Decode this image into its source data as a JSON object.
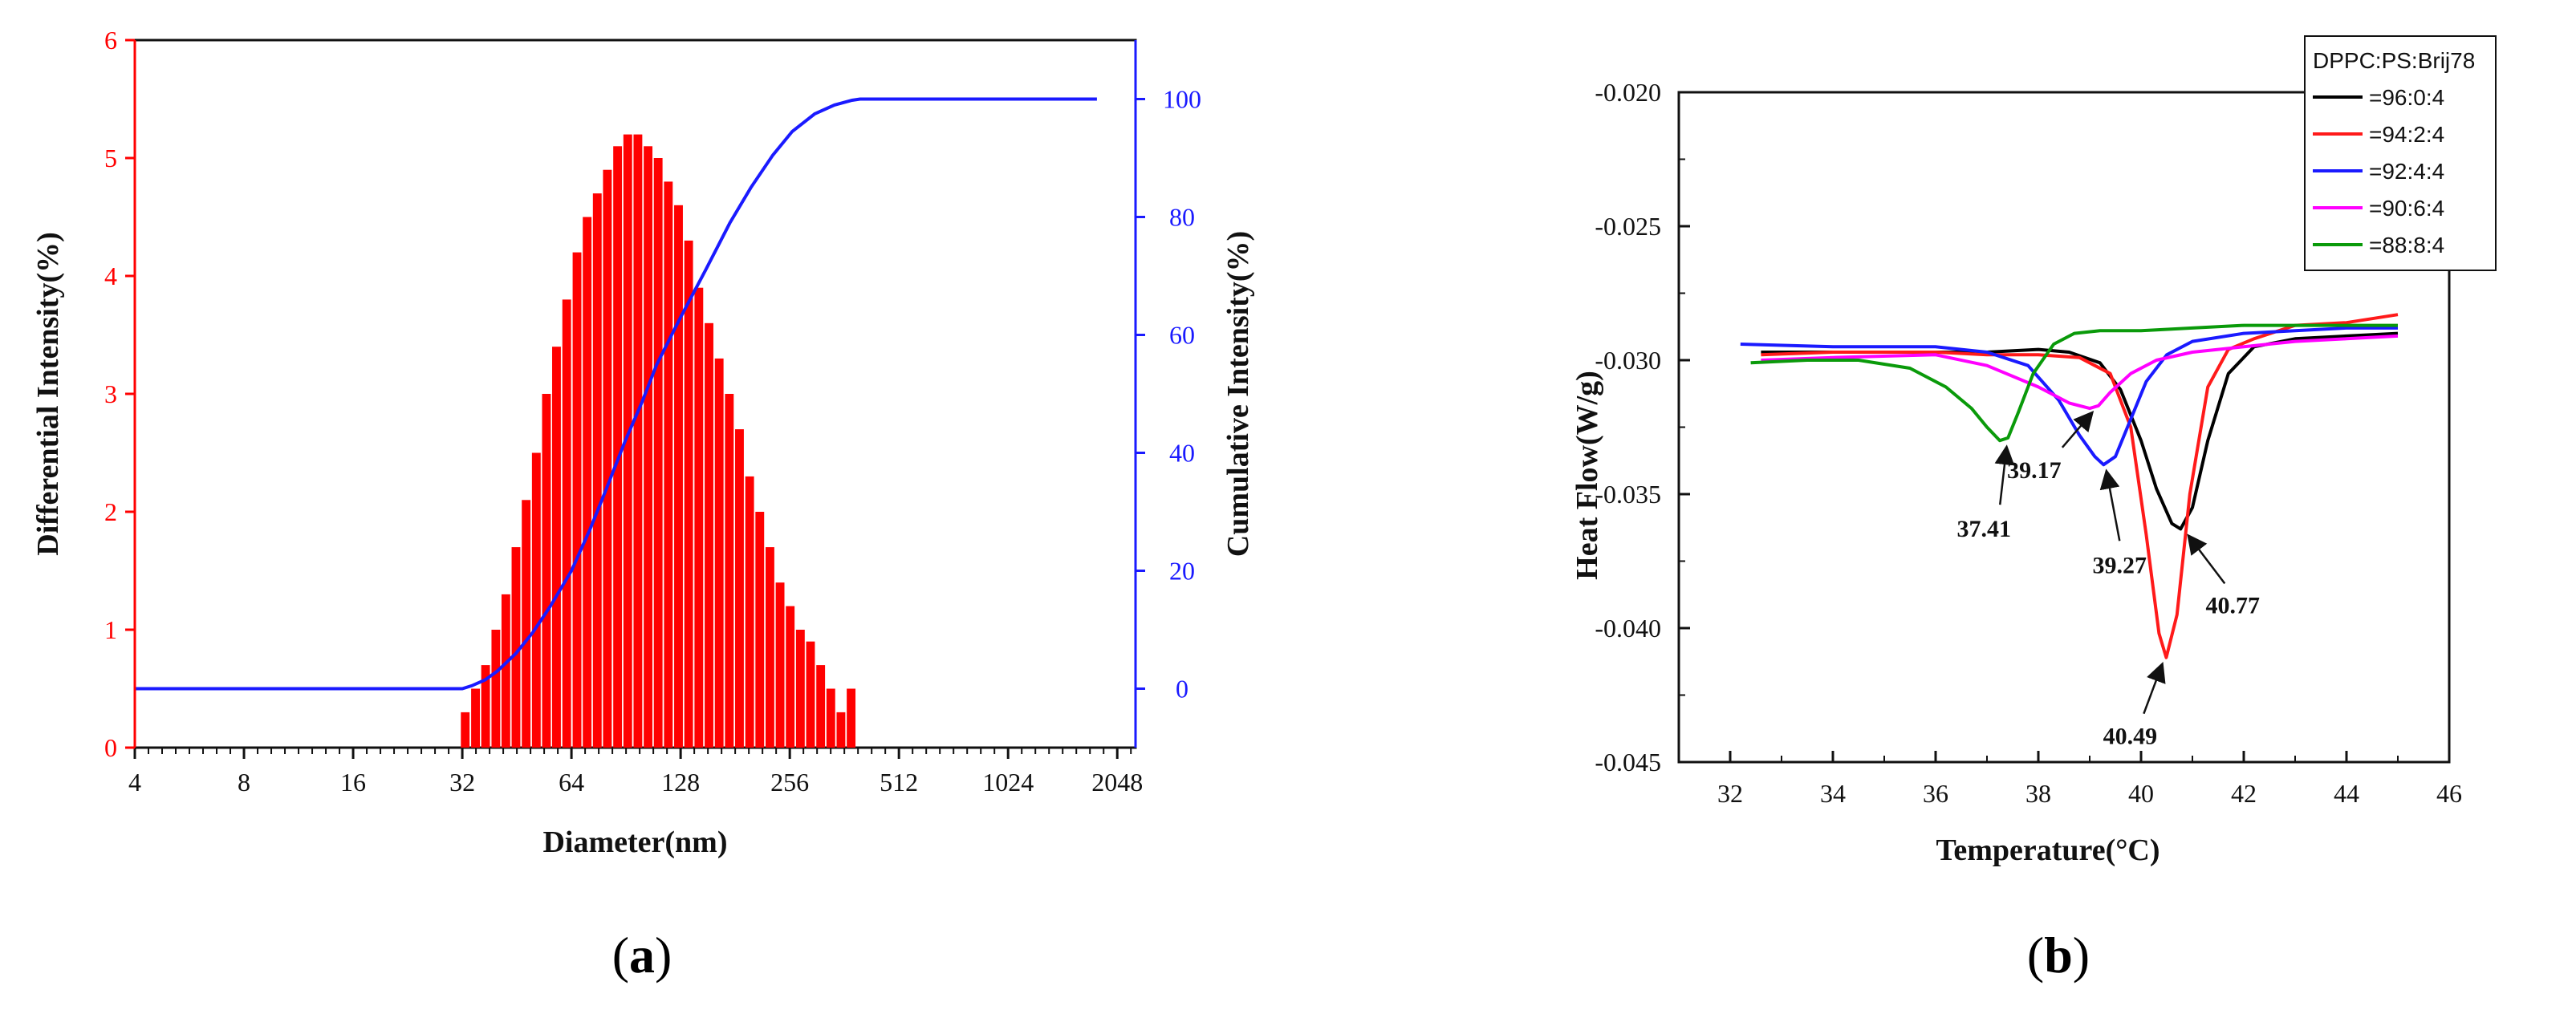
{
  "chart_data": [
    {
      "type": "bar",
      "panel_label": "(a)",
      "title": "",
      "xlabel": "Diameter(nm)",
      "ylabel": "Differential Intensity(%)",
      "y2label": "Cumulative Intensity(%)",
      "x_scale": "log2",
      "x_ticks": [
        4,
        8,
        16,
        32,
        64,
        128,
        256,
        512,
        1024,
        2048
      ],
      "xlim": [
        4,
        2300
      ],
      "ylim": [
        0,
        6
      ],
      "y_ticks": [
        0,
        1,
        2,
        3,
        4,
        5,
        6
      ],
      "y2lim": [
        -10,
        110
      ],
      "y2_ticks": [
        0,
        20,
        40,
        60,
        80,
        100
      ],
      "colors": {
        "bars": "#ff0000",
        "left_axis": "#ff0000",
        "right_axis": "#1a1aff",
        "curve": "#1a1aff"
      },
      "series": [
        {
          "name": "Differential Intensity",
          "type": "bar",
          "x": [
            32.6,
            34.8,
            37.1,
            39.6,
            42.2,
            45.0,
            48.0,
            51.2,
            54.6,
            58.2,
            62.1,
            66.3,
            70.7,
            75.4,
            80.4,
            85.8,
            91.5,
            97.6,
            104.1,
            111.0,
            118.4,
            126.3,
            134.7,
            143.7,
            153.3,
            163.5,
            174.4,
            186.0,
            198.4,
            211.6,
            225.7,
            240.7,
            256.7,
            273.8,
            292.0,
            311.5,
            332.2,
            354.3,
            377.9
          ],
          "values": [
            0.3,
            0.5,
            0.7,
            1.0,
            1.3,
            1.7,
            2.1,
            2.5,
            3.0,
            3.4,
            3.8,
            4.2,
            4.5,
            4.7,
            4.9,
            5.1,
            5.2,
            5.2,
            5.1,
            5.0,
            4.8,
            4.6,
            4.3,
            3.9,
            3.6,
            3.3,
            3.0,
            2.7,
            2.3,
            2.0,
            1.7,
            1.4,
            1.2,
            1.0,
            0.9,
            0.7,
            0.5,
            0.3,
            0.5
          ]
        },
        {
          "name": "Cumulative Intensity",
          "type": "line",
          "axis": "right",
          "x": [
            4,
            32,
            34,
            37,
            40,
            45,
            50,
            56,
            64,
            72,
            80,
            90,
            100,
            110,
            128,
            150,
            175,
            200,
            230,
            260,
            300,
            340,
            380,
            400,
            1800
          ],
          "y": [
            0,
            0,
            0.5,
            1.5,
            3,
            6,
            9.5,
            14,
            20,
            27,
            34,
            42,
            48.5,
            55,
            63,
            71,
            79,
            85,
            90.5,
            94.5,
            97.5,
            99,
            99.8,
            100,
            100
          ]
        }
      ]
    },
    {
      "type": "line",
      "panel_label": "(b)",
      "title": "",
      "xlabel": "Temperature(°C)",
      "ylabel": "Heat Flow(W/g)",
      "xlim": [
        31,
        46
      ],
      "x_ticks": [
        32,
        34,
        36,
        38,
        40,
        42,
        44,
        46
      ],
      "ylim": [
        -0.045,
        -0.02
      ],
      "y_ticks": [
        "-0.020",
        "-0.025",
        "-0.030",
        "-0.035",
        "-0.040",
        "-0.045"
      ],
      "legend_title": "DPPC:PS:Brij78",
      "legend_position": "top-right",
      "series": [
        {
          "name": "=96:0:4",
          "color": "#000000",
          "x": [
            32.6,
            34,
            36,
            37,
            38,
            38.6,
            39.2,
            39.6,
            40.0,
            40.3,
            40.6,
            40.77,
            41.0,
            41.3,
            41.7,
            42.2,
            43,
            44,
            45
          ],
          "y": [
            -0.0297,
            -0.0297,
            -0.0297,
            -0.0297,
            -0.0296,
            -0.0297,
            -0.0301,
            -0.0311,
            -0.033,
            -0.0348,
            -0.0361,
            -0.0363,
            -0.0355,
            -0.033,
            -0.0305,
            -0.0295,
            -0.0292,
            -0.0291,
            -0.029
          ]
        },
        {
          "name": "=94:2:4",
          "color": "#ff1a1a",
          "x": [
            32.6,
            34,
            36,
            37,
            38,
            38.8,
            39.4,
            39.8,
            40.1,
            40.35,
            40.49,
            40.7,
            40.95,
            41.3,
            41.7,
            42.2,
            43,
            44,
            45
          ],
          "y": [
            -0.0298,
            -0.0297,
            -0.0297,
            -0.0298,
            -0.0298,
            -0.0299,
            -0.0305,
            -0.0325,
            -0.0365,
            -0.0402,
            -0.0411,
            -0.0395,
            -0.035,
            -0.031,
            -0.0296,
            -0.0292,
            -0.0287,
            -0.0286,
            -0.0283
          ]
        },
        {
          "name": "=92:4:4",
          "color": "#1a1aff",
          "x": [
            32.2,
            34,
            36,
            37,
            37.8,
            38.4,
            38.8,
            39.1,
            39.27,
            39.5,
            39.8,
            40.1,
            40.5,
            41,
            42,
            43,
            44,
            45
          ],
          "y": [
            -0.0294,
            -0.0295,
            -0.0295,
            -0.0297,
            -0.0302,
            -0.0315,
            -0.0328,
            -0.0336,
            -0.0339,
            -0.0336,
            -0.0322,
            -0.0308,
            -0.0298,
            -0.0293,
            -0.029,
            -0.0289,
            -0.0288,
            -0.0288
          ]
        },
        {
          "name": "=90:6:4",
          "color": "#ff00ff",
          "x": [
            32.6,
            34,
            36,
            37,
            38,
            38.6,
            39.0,
            39.17,
            39.4,
            39.8,
            40.3,
            41,
            42,
            43,
            44,
            45
          ],
          "y": [
            -0.03,
            -0.0299,
            -0.0298,
            -0.0302,
            -0.031,
            -0.0316,
            -0.0318,
            -0.0317,
            -0.0312,
            -0.0305,
            -0.03,
            -0.0297,
            -0.0295,
            -0.0293,
            -0.0292,
            -0.0291
          ]
        },
        {
          "name": "=88:8:4",
          "color": "#0a9a0a",
          "x": [
            32.4,
            33.5,
            34.5,
            35.5,
            36.2,
            36.7,
            37.0,
            37.25,
            37.41,
            37.6,
            37.9,
            38.3,
            38.7,
            39.2,
            40,
            41,
            42,
            43,
            45
          ],
          "y": [
            -0.0301,
            -0.03,
            -0.03,
            -0.0303,
            -0.031,
            -0.0318,
            -0.0325,
            -0.033,
            -0.0329,
            -0.032,
            -0.0305,
            -0.0294,
            -0.029,
            -0.0289,
            -0.0289,
            -0.0288,
            -0.0287,
            -0.0287,
            -0.0287
          ]
        }
      ],
      "annotations": [
        {
          "text": "37.41",
          "x": 37.41,
          "y": -0.033
        },
        {
          "text": "39.17",
          "x": 39.17,
          "y": -0.0317
        },
        {
          "text": "39.27",
          "x": 39.27,
          "y": -0.0339
        },
        {
          "text": "40.77",
          "x": 40.77,
          "y": -0.0363
        },
        {
          "text": "40.49",
          "x": 40.49,
          "y": -0.0411
        }
      ]
    }
  ]
}
